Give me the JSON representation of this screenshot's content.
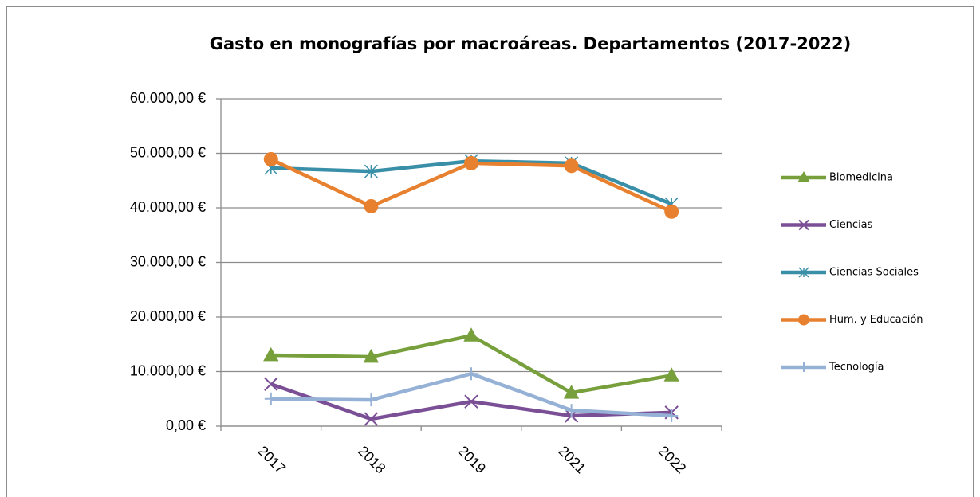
{
  "chart_data": {
    "type": "line",
    "title": "Gasto en monografías por macroáreas. Departamentos (2017-2022)",
    "categories": [
      "2017",
      "2018",
      "2019",
      "2021",
      "2022"
    ],
    "series": [
      {
        "name": "Biomedicina",
        "color": "#77a03c",
        "marker": "triangle",
        "values": [
          13000,
          12700,
          16600,
          6100,
          9300
        ]
      },
      {
        "name": "Ciencias",
        "color": "#7b4f96",
        "marker": "x",
        "values": [
          7700,
          1300,
          4500,
          1900,
          2500
        ]
      },
      {
        "name": "Ciencias Sociales",
        "color": "#3a8fa8",
        "marker": "star",
        "values": [
          47300,
          46700,
          48600,
          48200,
          40700
        ]
      },
      {
        "name": "Hum. y Educación",
        "color": "#e8812f",
        "marker": "circle",
        "values": [
          48900,
          40300,
          48200,
          47700,
          39300
        ]
      },
      {
        "name": "Tecnología",
        "color": "#96b1d6",
        "marker": "plus",
        "values": [
          5000,
          4800,
          9600,
          2900,
          1900
        ]
      }
    ],
    "ylim": [
      0,
      60000
    ],
    "yticks": [
      {
        "value": 0,
        "label": "0,00 €"
      },
      {
        "value": 10000,
        "label": "10.000,00 €"
      },
      {
        "value": 20000,
        "label": "20.000,00 €"
      },
      {
        "value": 30000,
        "label": "30.000,00 €"
      },
      {
        "value": 40000,
        "label": "40.000,00 €"
      },
      {
        "value": 50000,
        "label": "50.000,00 €"
      },
      {
        "value": 60000,
        "label": "60.000,00 €"
      }
    ],
    "grid": true,
    "legend": "right"
  }
}
